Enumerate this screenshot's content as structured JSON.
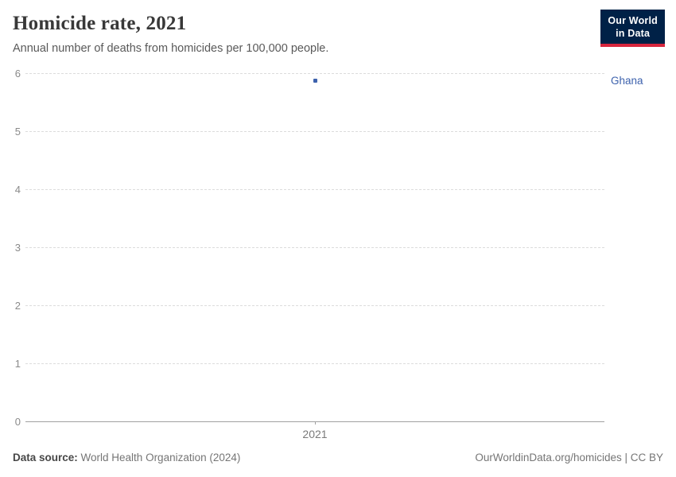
{
  "header": {
    "title": "Homicide rate, 2021",
    "subtitle": "Annual number of deaths from homicides per 100,000 people."
  },
  "logo": {
    "line1": "Our World",
    "line2": "in Data",
    "bg_color": "#002147",
    "bar_color": "#d7263d"
  },
  "footer": {
    "datasource_label": "Data source:",
    "datasource_value": " World Health Organization (2024)",
    "credit": "OurWorldinData.org/homicides | CC BY"
  },
  "colors": {
    "accent_blue": "#3d62ad",
    "gridline": "#dcdcdc",
    "axis_line": "#a1a1a1",
    "tick_text": "#8a8a8a"
  },
  "chart_data": {
    "type": "scatter",
    "title": "Homicide rate, 2021",
    "subtitle": "Annual number of deaths from homicides per 100,000 people.",
    "x": [
      2021
    ],
    "xticklabels": [
      "2021"
    ],
    "series": [
      {
        "name": "Ghana",
        "values": [
          5.87
        ],
        "color": "#3d62ad"
      }
    ],
    "xlabel": "",
    "ylabel": "",
    "ylim": [
      0,
      6
    ],
    "yticks": [
      0,
      1,
      2,
      3,
      4,
      5,
      6
    ],
    "grid": "horizontal-dashed",
    "legend_position": "right-of-point"
  }
}
